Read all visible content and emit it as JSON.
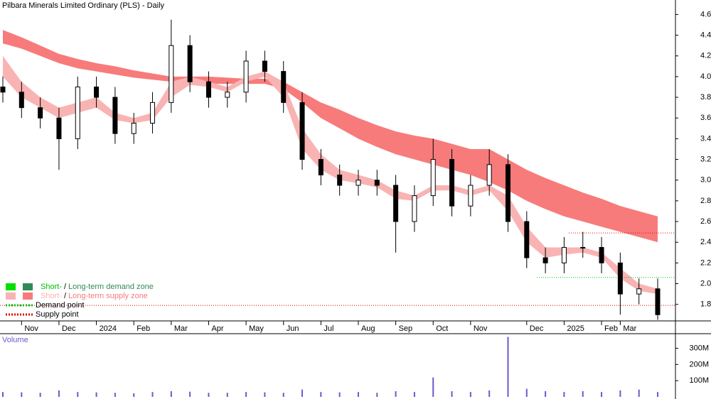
{
  "chart_data": {
    "type": "candlestick",
    "title": "Pilbara Minerals Limited Ordinary (PLS) - Daily",
    "categories": [
      null,
      "Nov",
      null,
      "Dec",
      null,
      "2024",
      null,
      "Feb",
      null,
      "Mar",
      null,
      "Apr",
      null,
      "May",
      null,
      "Jun",
      null,
      "Jul",
      null,
      "Aug",
      null,
      "Sep",
      null,
      "Oct",
      null,
      "Nov",
      null,
      null,
      "Dec",
      null,
      "2025",
      null,
      "Feb",
      "Mar",
      null,
      null
    ],
    "open": [
      3.9,
      3.85,
      3.7,
      3.6,
      3.4,
      3.9,
      3.8,
      3.45,
      3.55,
      3.75,
      4.3,
      3.95,
      3.8,
      3.85,
      4.15,
      4.05,
      3.75,
      3.2,
      3.05,
      2.95,
      3.0,
      2.95,
      2.6,
      2.85,
      3.2,
      2.75,
      2.95,
      3.15,
      2.6,
      2.25,
      2.2,
      2.35,
      2.35,
      2.2,
      1.9,
      1.95
    ],
    "high": [
      4.0,
      3.95,
      3.8,
      3.7,
      4.0,
      4.0,
      3.9,
      3.65,
      3.85,
      4.55,
      4.4,
      4.05,
      3.95,
      4.25,
      4.25,
      4.15,
      3.85,
      3.3,
      3.15,
      3.1,
      3.1,
      3.05,
      2.95,
      3.4,
      3.3,
      3.05,
      3.3,
      3.25,
      2.7,
      2.35,
      2.45,
      2.5,
      2.45,
      2.3,
      2.05,
      2.05
    ],
    "low": [
      3.75,
      3.6,
      3.5,
      3.1,
      3.3,
      3.7,
      3.35,
      3.35,
      3.45,
      3.65,
      3.85,
      3.7,
      3.7,
      3.75,
      3.95,
      3.65,
      3.1,
      2.95,
      2.85,
      2.85,
      2.85,
      2.3,
      2.5,
      2.75,
      2.65,
      2.65,
      2.85,
      2.5,
      2.15,
      2.1,
      2.1,
      2.25,
      2.1,
      1.7,
      1.8,
      1.65
    ],
    "close": [
      3.85,
      3.7,
      3.6,
      3.4,
      3.9,
      3.8,
      3.45,
      3.55,
      3.75,
      4.3,
      3.95,
      3.8,
      3.85,
      4.15,
      4.05,
      3.75,
      3.2,
      3.05,
      2.95,
      3.0,
      2.95,
      2.6,
      2.85,
      3.2,
      2.75,
      2.95,
      3.15,
      2.6,
      2.25,
      2.2,
      2.35,
      2.35,
      2.2,
      1.9,
      1.95,
      1.7
    ],
    "long_term_zone": {
      "color": "#f77b7b",
      "upper": [
        4.45,
        4.38,
        4.3,
        4.22,
        4.17,
        4.13,
        4.1,
        4.06,
        4.03,
        4.0,
        4.0,
        4.0,
        3.99,
        3.98,
        3.98,
        3.95,
        3.85,
        3.75,
        3.68,
        3.6,
        3.53,
        3.47,
        3.43,
        3.4,
        3.35,
        3.3,
        3.3,
        3.2,
        3.1,
        3.02,
        2.95,
        2.88,
        2.82,
        2.75,
        2.7,
        2.65
      ],
      "lower": [
        4.32,
        4.27,
        4.2,
        4.13,
        4.08,
        4.05,
        4.02,
        3.99,
        3.97,
        3.95,
        3.94,
        3.93,
        3.93,
        3.93,
        3.93,
        3.88,
        3.75,
        3.6,
        3.5,
        3.4,
        3.32,
        3.25,
        3.2,
        3.15,
        3.1,
        3.05,
        2.98,
        2.9,
        2.8,
        2.72,
        2.65,
        2.6,
        2.55,
        2.5,
        2.45,
        2.4
      ]
    },
    "short_term_zone": {
      "color": "#f9b3b3",
      "upper": [
        4.2,
        3.95,
        3.8,
        3.7,
        3.75,
        3.8,
        3.65,
        3.6,
        3.65,
        3.95,
        4.0,
        3.95,
        3.9,
        4.0,
        4.05,
        3.95,
        3.5,
        3.25,
        3.1,
        3.05,
        3.0,
        2.9,
        2.85,
        2.95,
        2.95,
        2.9,
        2.95,
        2.85,
        2.55,
        2.35,
        2.35,
        2.35,
        2.3,
        2.15,
        2.0,
        1.95
      ],
      "lower": [
        4.0,
        3.8,
        3.7,
        3.6,
        3.65,
        3.7,
        3.58,
        3.55,
        3.58,
        3.8,
        3.92,
        3.9,
        3.85,
        3.95,
        4.0,
        3.8,
        3.3,
        3.1,
        3.0,
        2.97,
        2.93,
        2.82,
        2.8,
        2.9,
        2.9,
        2.85,
        2.9,
        2.7,
        2.4,
        2.25,
        2.28,
        2.3,
        2.25,
        2.05,
        1.93,
        1.9
      ]
    },
    "supply_points": [
      2.49,
      1.79
    ],
    "demand_points": [
      2.06
    ],
    "ylim": [
      1.64,
      4.74
    ],
    "yticks": [
      1.8,
      {
        "value": 2,
        "label": "2.0"
      },
      2.2,
      2.4,
      2.6,
      2.8,
      {
        "value": 3,
        "label": "3.0"
      },
      3.2,
      3.4,
      3.6,
      3.8,
      {
        "value": 4,
        "label": "4.0"
      },
      4.2,
      4.4,
      4.6
    ],
    "volume": {
      "label": "Volume",
      "color": "#6a5acd",
      "values": [
        30000000,
        28000000,
        25000000,
        40000000,
        30000000,
        28000000,
        25000000,
        22000000,
        30000000,
        35000000,
        32000000,
        25000000,
        25000000,
        30000000,
        28000000,
        25000000,
        45000000,
        30000000,
        28000000,
        30000000,
        25000000,
        35000000,
        30000000,
        120000000,
        35000000,
        30000000,
        40000000,
        370000000,
        50000000,
        35000000,
        30000000,
        35000000,
        30000000,
        40000000,
        45000000,
        30000000
      ],
      "ylim": [
        0,
        390000000
      ],
      "yticks": [
        {
          "value": 100000000,
          "label": "100M"
        },
        {
          "value": 200000000,
          "label": "200M"
        },
        {
          "value": 300000000,
          "label": "300M"
        }
      ]
    },
    "legend": [
      {
        "colors": [
          "#00e000",
          "#2e8b57"
        ],
        "parts": [
          "Short-",
          "/",
          "Long-term demand zone"
        ],
        "text_colors": [
          "#00c000",
          "#000000",
          "#2e8b57"
        ]
      },
      {
        "colors": [
          "#f9b3b3",
          "#f77b7b"
        ],
        "parts": [
          "Short-",
          "/",
          "Long-term supply zone"
        ],
        "text_colors": [
          "#f9b3b3",
          "#000000",
          "#f77b7b"
        ]
      },
      {
        "line_color": "#00c000",
        "parts": [
          "Demand point"
        ]
      },
      {
        "line_color": "#e00000",
        "parts": [
          "Supply point"
        ]
      }
    ]
  }
}
